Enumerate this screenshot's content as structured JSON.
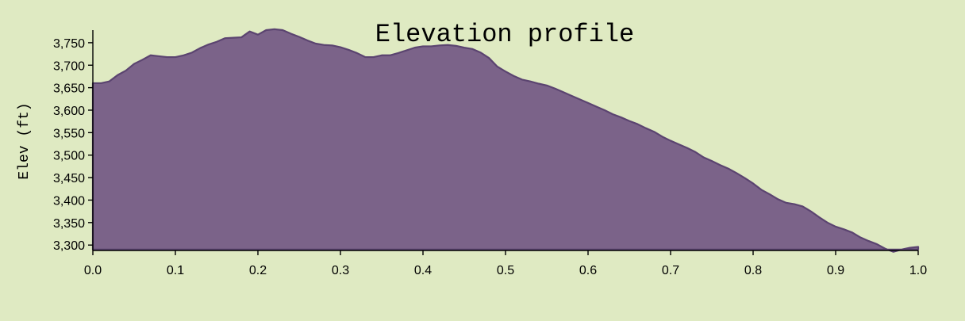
{
  "colors": {
    "background": "#dfeac2",
    "area_fill": "#7b6389",
    "area_edge": "#5b4470",
    "axis": "#000000"
  },
  "chart_data": {
    "type": "area",
    "title": "Elevation profile",
    "xlabel": "",
    "ylabel": "Elev (ft)",
    "xlim": [
      0.0,
      1.0
    ],
    "ylim": [
      3288,
      3778
    ],
    "baseline": 3290,
    "x_ticks": [
      "0.0",
      "0.1",
      "0.2",
      "0.3",
      "0.4",
      "0.5",
      "0.6",
      "0.7",
      "0.8",
      "0.9",
      "1.0"
    ],
    "y_ticks": [
      "3,300",
      "3,350",
      "3,400",
      "3,450",
      "3,500",
      "3,550",
      "3,600",
      "3,650",
      "3,700",
      "3,750"
    ],
    "grid": false,
    "legend": "none",
    "series": [
      {
        "x": [
          0.0,
          0.01,
          0.02,
          0.03,
          0.04,
          0.05,
          0.06,
          0.07,
          0.08,
          0.09,
          0.1,
          0.11,
          0.12,
          0.13,
          0.14,
          0.15,
          0.16,
          0.17,
          0.18,
          0.19,
          0.2,
          0.21,
          0.22,
          0.23,
          0.24,
          0.25,
          0.26,
          0.27,
          0.28,
          0.29,
          0.3,
          0.31,
          0.32,
          0.33,
          0.34,
          0.35,
          0.36,
          0.37,
          0.38,
          0.39,
          0.4,
          0.41,
          0.42,
          0.43,
          0.44,
          0.45,
          0.46,
          0.47,
          0.48,
          0.49,
          0.5,
          0.51,
          0.52,
          0.53,
          0.54,
          0.55,
          0.56,
          0.57,
          0.58,
          0.59,
          0.6,
          0.61,
          0.62,
          0.63,
          0.64,
          0.65,
          0.66,
          0.67,
          0.68,
          0.69,
          0.7,
          0.71,
          0.72,
          0.73,
          0.74,
          0.75,
          0.76,
          0.77,
          0.78,
          0.79,
          0.8,
          0.81,
          0.82,
          0.83,
          0.84,
          0.85,
          0.86,
          0.87,
          0.88,
          0.89,
          0.9,
          0.91,
          0.92,
          0.93,
          0.94,
          0.95,
          0.96,
          0.97,
          0.98,
          0.99,
          1.0
        ],
        "y": [
          3660,
          3660,
          3664,
          3678,
          3688,
          3703,
          3712,
          3722,
          3720,
          3718,
          3718,
          3722,
          3728,
          3738,
          3746,
          3752,
          3760,
          3761,
          3762,
          3775,
          3768,
          3778,
          3780,
          3778,
          3770,
          3763,
          3755,
          3748,
          3745,
          3744,
          3740,
          3734,
          3727,
          3718,
          3718,
          3722,
          3722,
          3727,
          3733,
          3739,
          3742,
          3742,
          3744,
          3745,
          3743,
          3739,
          3736,
          3728,
          3716,
          3697,
          3686,
          3676,
          3668,
          3664,
          3659,
          3655,
          3648,
          3640,
          3632,
          3624,
          3616,
          3608,
          3600,
          3591,
          3584,
          3576,
          3569,
          3560,
          3552,
          3541,
          3532,
          3524,
          3516,
          3507,
          3495,
          3487,
          3478,
          3470,
          3460,
          3449,
          3437,
          3423,
          3413,
          3402,
          3394,
          3391,
          3386,
          3375,
          3362,
          3350,
          3341,
          3335,
          3328,
          3317,
          3309,
          3302,
          3292,
          3285,
          3290,
          3294,
          3296
        ]
      }
    ]
  }
}
